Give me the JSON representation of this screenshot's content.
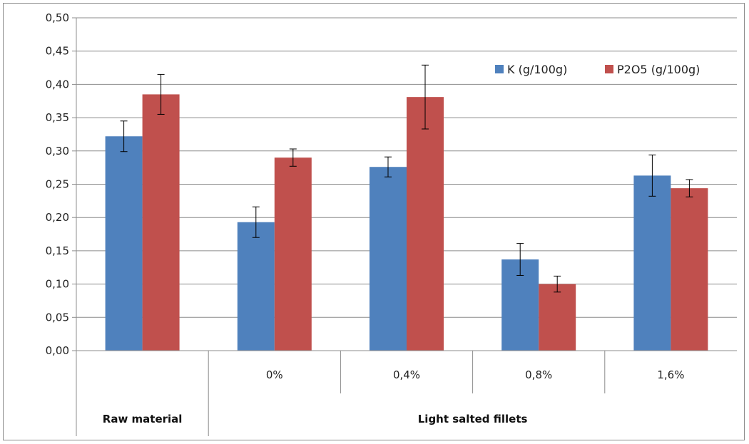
{
  "chart_data": {
    "type": "bar",
    "categories": [
      "",
      "0%",
      "0,4%",
      "0,8%",
      "1,6%"
    ],
    "groups": [
      {
        "label": "Raw material",
        "categories": [
          0
        ]
      },
      {
        "label": "Light salted  fillets",
        "categories": [
          1,
          2,
          3,
          4
        ]
      }
    ],
    "series": [
      {
        "name": "K (g/100g)",
        "color": "#4f81bd",
        "values": [
          0.322,
          0.193,
          0.276,
          0.137,
          0.263
        ],
        "errors": [
          0.023,
          0.023,
          0.015,
          0.024,
          0.031
        ]
      },
      {
        "name": "P2O5 (g/100g)",
        "color": "#c0504d",
        "values": [
          0.385,
          0.29,
          0.381,
          0.1,
          0.244
        ],
        "errors": [
          0.03,
          0.013,
          0.048,
          0.012,
          0.013
        ]
      }
    ],
    "ylim": [
      0,
      0.5
    ],
    "yticks": [
      "0,00",
      "0,05",
      "0,10",
      "0,15",
      "0,20",
      "0,25",
      "0,30",
      "0,35",
      "0,40",
      "0,45",
      "0,50"
    ],
    "grid": true,
    "legend": "top-right",
    "title": "",
    "xlabel": "",
    "ylabel": ""
  }
}
